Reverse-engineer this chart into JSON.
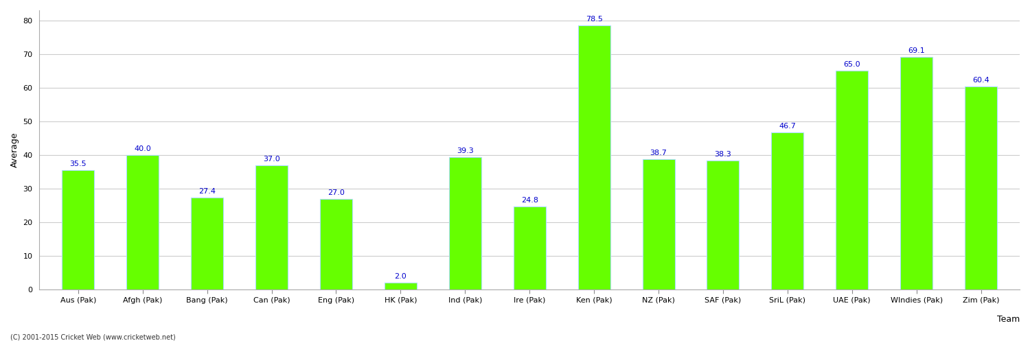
{
  "categories": [
    "Aus (Pak)",
    "Afgh (Pak)",
    "Bang (Pak)",
    "Can (Pak)",
    "Eng (Pak)",
    "HK (Pak)",
    "Ind (Pak)",
    "Ire (Pak)",
    "Ken (Pak)",
    "NZ (Pak)",
    "SAF (Pak)",
    "SriL (Pak)",
    "UAE (Pak)",
    "WIndies (Pak)",
    "Zim (Pak)"
  ],
  "values": [
    35.5,
    40.0,
    27.4,
    37.0,
    27.0,
    2.0,
    39.3,
    24.8,
    78.5,
    38.7,
    38.3,
    46.7,
    65.0,
    69.1,
    60.4
  ],
  "bar_color": "#66ff00",
  "bar_edge_color": "#aaddff",
  "label_color": "#0000cc",
  "xlabel": "Team",
  "ylabel": "Average",
  "ylim": [
    0,
    83
  ],
  "yticks": [
    0,
    10,
    20,
    30,
    40,
    50,
    60,
    70,
    80
  ],
  "grid_color": "#cccccc",
  "background_color": "#ffffff",
  "copyright": "(C) 2001-2015 Cricket Web (www.cricketweb.net)",
  "label_fontsize": 8,
  "axis_fontsize": 9,
  "tick_fontsize": 8
}
